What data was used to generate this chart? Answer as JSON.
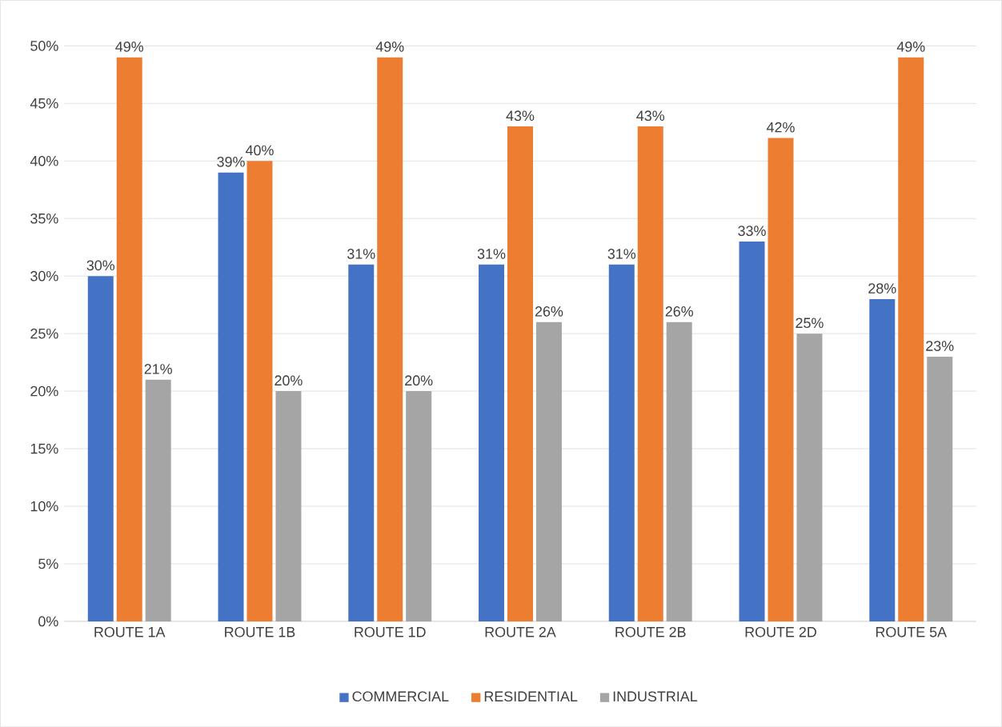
{
  "chart_data": {
    "type": "bar",
    "categories": [
      "ROUTE 1A",
      "ROUTE 1B",
      "ROUTE 1D",
      "ROUTE 2A",
      "ROUTE 2B",
      "ROUTE 2D",
      "ROUTE 5A"
    ],
    "series": [
      {
        "name": "COMMERCIAL",
        "color": "#4472c4",
        "values": [
          30,
          39,
          31,
          31,
          31,
          33,
          28
        ],
        "value_labels": [
          "30%",
          "39%",
          "31%",
          "31%",
          "31%",
          "33%",
          "28%"
        ]
      },
      {
        "name": "RESIDENTIAL",
        "color": "#ed7d31",
        "values": [
          49,
          40,
          49,
          43,
          43,
          42,
          49
        ],
        "value_labels": [
          "49%",
          "40%",
          "49%",
          "43%",
          "43%",
          "42%",
          "49%"
        ]
      },
      {
        "name": "INDUSTRIAL",
        "color": "#a5a5a5",
        "values": [
          21,
          20,
          20,
          26,
          26,
          25,
          23
        ],
        "value_labels": [
          "21%",
          "20%",
          "20%",
          "26%",
          "26%",
          "25%",
          "23%"
        ]
      }
    ],
    "ylim": [
      0,
      50
    ],
    "yticks": [
      {
        "value": 0,
        "label": "0%"
      },
      {
        "value": 5,
        "label": "5%"
      },
      {
        "value": 10,
        "label": "10%"
      },
      {
        "value": 15,
        "label": "15%"
      },
      {
        "value": 20,
        "label": "20%"
      },
      {
        "value": 25,
        "label": "25%"
      },
      {
        "value": 30,
        "label": "30%"
      },
      {
        "value": 35,
        "label": "35%"
      },
      {
        "value": 40,
        "label": "40%"
      },
      {
        "value": 45,
        "label": "45%"
      },
      {
        "value": 50,
        "label": "50%"
      }
    ],
    "grid": "y",
    "legend": "bottom"
  }
}
